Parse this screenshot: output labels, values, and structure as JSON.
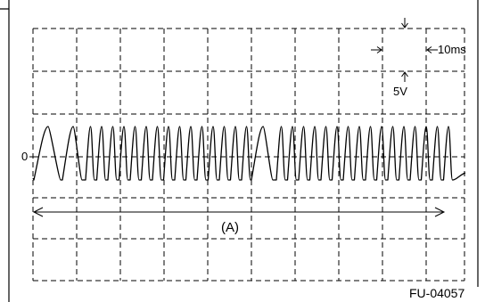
{
  "scale": {
    "time_per_division": "10ms",
    "volts_per_division": "5V"
  },
  "zero_marker": "0",
  "span_label": "(A)",
  "figure_id": "FU-04057",
  "colors": {
    "ink": "#000000",
    "background": "#ffffff"
  }
}
